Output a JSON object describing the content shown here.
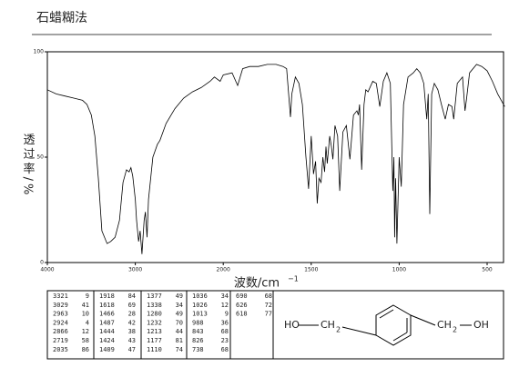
{
  "chart_data": {
    "type": "line",
    "title": "石蜡糊法",
    "xlabel": "波数/cm",
    "xlabel_sup": "−1",
    "ylabel": "透过率/%",
    "xlim": [
      4000,
      400
    ],
    "xticks": [
      4000,
      3000,
      2000,
      1500,
      1000,
      500
    ],
    "ylim": [
      0,
      100
    ],
    "yticks": [
      0,
      50,
      100
    ],
    "color": "#000000",
    "x": [
      4000,
      3900,
      3800,
      3700,
      3600,
      3550,
      3500,
      3460,
      3420,
      3380,
      3321,
      3280,
      3230,
      3180,
      3140,
      3100,
      3070,
      3050,
      3029,
      3000,
      2985,
      2963,
      2945,
      2924,
      2900,
      2885,
      2866,
      2850,
      2800,
      2750,
      2719,
      2650,
      2550,
      2450,
      2350,
      2250,
      2150,
      2100,
      2035,
      2000,
      1950,
      1918,
      1890,
      1850,
      1800,
      1750,
      1700,
      1660,
      1640,
      1618,
      1610,
      1590,
      1570,
      1550,
      1530,
      1515,
      1500,
      1487,
      1475,
      1466,
      1456,
      1444,
      1434,
      1424,
      1416,
      1409,
      1395,
      1385,
      1377,
      1365,
      1350,
      1338,
      1320,
      1300,
      1280,
      1260,
      1240,
      1232,
      1225,
      1213,
      1200,
      1190,
      1177,
      1150,
      1130,
      1110,
      1090,
      1070,
      1050,
      1036,
      1030,
      1026,
      1020,
      1013,
      1000,
      988,
      975,
      950,
      920,
      900,
      880,
      860,
      843,
      835,
      826,
      815,
      800,
      780,
      760,
      738,
      720,
      700,
      690,
      670,
      640,
      626,
      618,
      600,
      560,
      530,
      500,
      470,
      440,
      400
    ],
    "values": [
      82,
      80,
      79,
      78,
      77,
      75,
      70,
      60,
      40,
      15,
      9,
      10,
      12,
      20,
      38,
      44,
      43,
      45,
      41,
      30,
      20,
      10,
      15,
      4,
      20,
      24,
      12,
      30,
      50,
      56,
      58,
      66,
      73,
      78,
      81,
      83,
      86,
      88,
      86,
      89,
      90,
      84,
      92,
      93,
      93,
      94,
      94,
      93,
      92,
      69,
      80,
      88,
      85,
      75,
      50,
      35,
      60,
      42,
      48,
      28,
      40,
      38,
      50,
      43,
      55,
      47,
      60,
      55,
      49,
      65,
      60,
      34,
      62,
      65,
      49,
      70,
      72,
      70,
      75,
      44,
      75,
      82,
      81,
      86,
      85,
      74,
      86,
      90,
      85,
      34,
      50,
      12,
      40,
      9,
      50,
      36,
      75,
      88,
      90,
      92,
      90,
      85,
      68,
      80,
      23,
      80,
      85,
      82,
      75,
      68,
      75,
      74,
      68,
      85,
      88,
      72,
      77,
      90,
      94,
      93,
      91,
      86,
      80,
      74
    ]
  },
  "peak_table": [
    [
      [
        3321,
        9
      ],
      [
        3029,
        41
      ],
      [
        2963,
        10
      ],
      [
        2924,
        4
      ],
      [
        2866,
        12
      ],
      [
        2719,
        58
      ],
      [
        2035,
        86
      ]
    ],
    [
      [
        1918,
        84
      ],
      [
        1618,
        69
      ],
      [
        1466,
        28
      ],
      [
        1487,
        42
      ],
      [
        1444,
        38
      ],
      [
        1424,
        43
      ],
      [
        1409,
        47
      ]
    ],
    [
      [
        1377,
        49
      ],
      [
        1338,
        34
      ],
      [
        1280,
        49
      ],
      [
        1232,
        70
      ],
      [
        1213,
        44
      ],
      [
        1177,
        81
      ],
      [
        1110,
        74
      ]
    ],
    [
      [
        1036,
        34
      ],
      [
        1026,
        12
      ],
      [
        1013,
        9
      ],
      [
        988,
        36
      ],
      [
        843,
        68
      ],
      [
        826,
        23
      ],
      [
        738,
        68
      ]
    ],
    [
      [
        690,
        68
      ],
      [
        626,
        72
      ],
      [
        618,
        77
      ]
    ]
  ],
  "structure": {
    "left": "HO",
    "left_ch": "CH",
    "left_sub": "2",
    "right_ch": "CH",
    "right_sub": "2",
    "right": "OH"
  }
}
